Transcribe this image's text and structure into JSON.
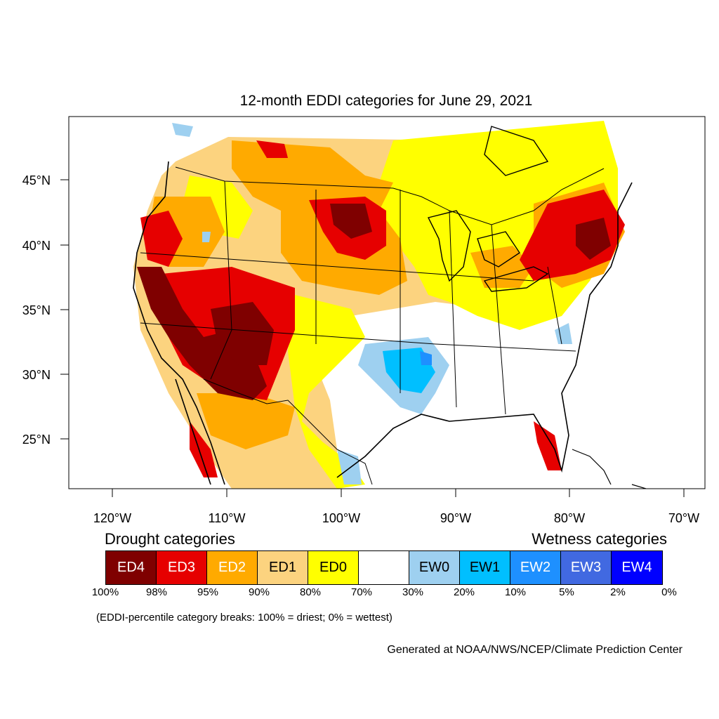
{
  "title": "12-month EDDI categories for June 29, 2021",
  "axes": {
    "lat_labels": [
      "45°N",
      "40°N",
      "35°N",
      "30°N",
      "25°N"
    ],
    "lon_labels": [
      "120°W",
      "110°W",
      "100°W",
      "90°W",
      "80°W",
      "70°W"
    ]
  },
  "legend": {
    "drought_heading": "Drought categories",
    "wetness_heading": "Wetness categories",
    "categories": [
      {
        "label": "ED4",
        "color": "#7f0000",
        "text_color": "#ffffff"
      },
      {
        "label": "ED3",
        "color": "#e60000",
        "text_color": "#ffffff"
      },
      {
        "label": "ED2",
        "color": "#ffaa00",
        "text_color": "#ffffff"
      },
      {
        "label": "ED1",
        "color": "#fcd37f",
        "text_color": "#000000"
      },
      {
        "label": "ED0",
        "color": "#ffff00",
        "text_color": "#000000"
      },
      {
        "label": "",
        "color": "#ffffff",
        "text_color": "#000000"
      },
      {
        "label": "EW0",
        "color": "#9ed0f0",
        "text_color": "#000000"
      },
      {
        "label": "EW1",
        "color": "#00bfff",
        "text_color": "#000000"
      },
      {
        "label": "EW2",
        "color": "#1e90ff",
        "text_color": "#ffffff"
      },
      {
        "label": "EW3",
        "color": "#4169e1",
        "text_color": "#ffffff"
      },
      {
        "label": "EW4",
        "color": "#0000ff",
        "text_color": "#ffffff"
      }
    ],
    "breaks": [
      "100%",
      "98%",
      "95%",
      "90%",
      "80%",
      "70%",
      "30%",
      "20%",
      "10%",
      "5%",
      "2%",
      "0%"
    ]
  },
  "note": "(EDDI-percentile category breaks: 100% = driest; 0% = wettest)",
  "credit": "Generated at NOAA/NWS/NCEP/Climate Prediction Center"
}
